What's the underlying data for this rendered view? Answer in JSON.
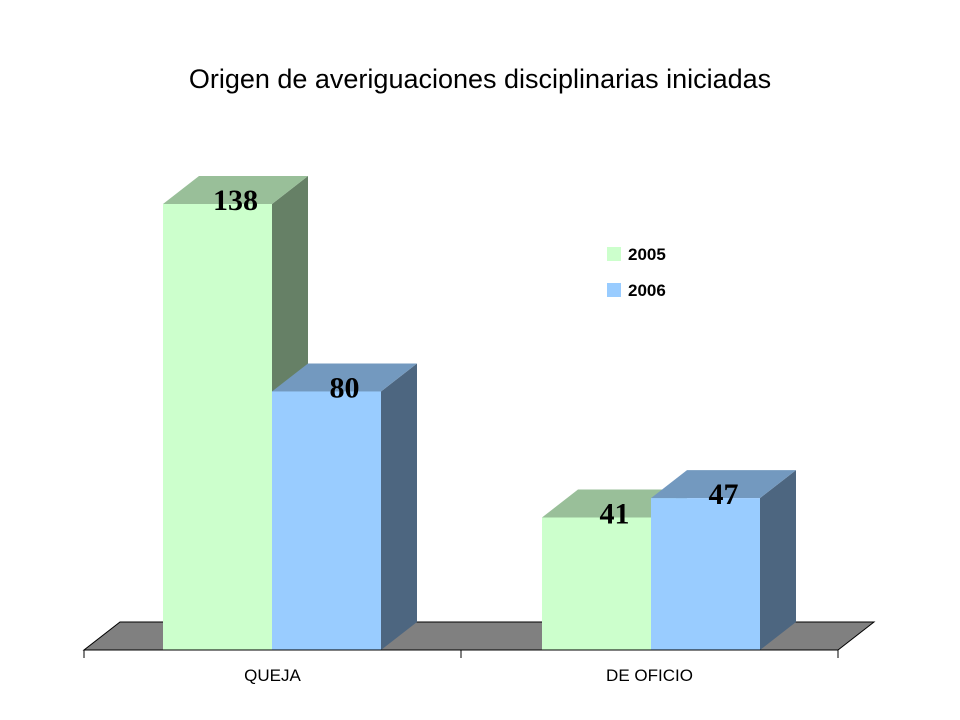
{
  "chart_data": {
    "type": "bar",
    "title": "Origen de averiguaciones  disciplinarias  iniciadas",
    "categories": [
      "QUEJA",
      "DE OFICIO"
    ],
    "series": [
      {
        "name": "2005",
        "values": [
          138,
          41
        ],
        "color": "#ccffcc"
      },
      {
        "name": "2006",
        "values": [
          80,
          47
        ],
        "color": "#99ccff"
      }
    ],
    "ylim": [
      0,
      150
    ],
    "grid": false,
    "legend_position": "top-right",
    "floor_color": "#808080"
  }
}
